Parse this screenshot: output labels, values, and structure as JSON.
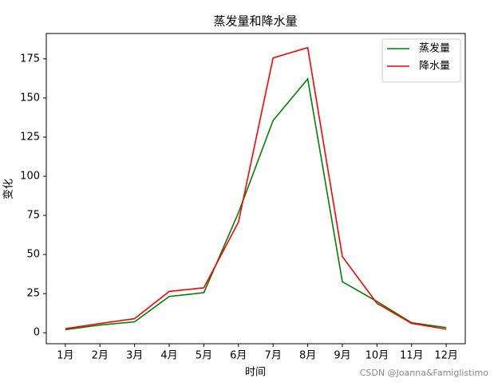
{
  "chart_data": {
    "type": "line",
    "title": "蒸发量和降水量",
    "x_label": "时间",
    "y_label": "变化",
    "categories": [
      "1月",
      "2月",
      "3月",
      "4月",
      "5月",
      "6月",
      "7月",
      "8月",
      "9月",
      "10月",
      "11月",
      "12月"
    ],
    "series": [
      {
        "name": "蒸发量",
        "color": "#008000",
        "values": [
          2.0,
          4.9,
          7.0,
          23.2,
          25.6,
          76.7,
          135.6,
          162.2,
          32.6,
          20.0,
          6.4,
          3.3
        ]
      },
      {
        "name": "降水量",
        "color": "#ff0000",
        "values": [
          2.6,
          5.9,
          9.0,
          26.4,
          28.7,
          70.7,
          175.6,
          182.2,
          48.7,
          18.8,
          6.0,
          2.3
        ]
      }
    ],
    "ylim": [
      -7.01,
      191.21
    ],
    "yticks": [
      0,
      25,
      50,
      75,
      100,
      125,
      150,
      175
    ],
    "legend": "upper right",
    "grid": false,
    "watermark": "CSDN @Joanna&Famiglistimo"
  }
}
